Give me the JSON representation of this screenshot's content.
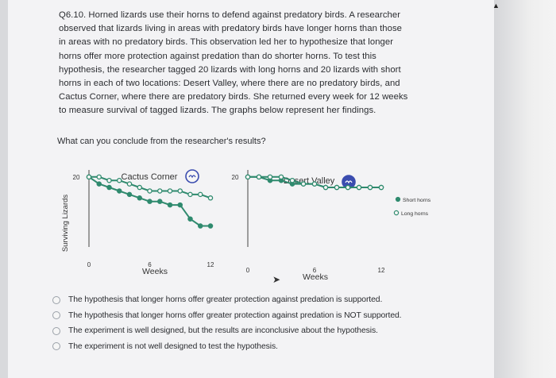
{
  "question": {
    "number": "Q6.10.",
    "lines": [
      "Q6.10. Horned lizards use their horns to defend against predatory birds. A researcher",
      "observed that lizards living in areas with predatory birds have longer horns than those",
      "in areas with no predatory birds. This observation led her to hypothesize that longer",
      "horns offer more protection against predation than do shorter horns. To test this",
      "hypothesis, the researcher tagged 20 lizards with long horns and 20 lizards with short",
      "horns in each of two locations: Desert Valley, where there are no predatory birds, and",
      "Cactus Corner, where there are predatory birds. She returned every week for 12 weeks",
      "to measure survival of tagged lizards. The graphs below represent her findings."
    ],
    "prompt": "What can you conclude from the researcher's results?"
  },
  "chart_data": [
    {
      "type": "line",
      "title": "Cactus Corner",
      "xlabel": "Weeks",
      "ylabel": "Surviving Lizards",
      "xticks": [
        "0",
        "6",
        "12"
      ],
      "yticks": [
        "20"
      ],
      "xlim": [
        0,
        12
      ],
      "ylim": [
        0,
        22
      ],
      "series": [
        {
          "name": "Long horns",
          "marker": "open",
          "x": [
            0,
            1,
            2,
            3,
            4,
            5,
            6,
            7,
            8,
            9,
            10,
            11,
            12
          ],
          "y": [
            20,
            20,
            19,
            19,
            18,
            17,
            16,
            16,
            16,
            16,
            15,
            15,
            14
          ]
        },
        {
          "name": "Short horns",
          "marker": "filled",
          "x": [
            0,
            1,
            2,
            3,
            4,
            5,
            6,
            7,
            8,
            9,
            10,
            11,
            12
          ],
          "y": [
            20,
            18,
            17,
            16,
            15,
            14,
            13,
            13,
            12,
            12,
            8,
            6,
            6
          ]
        }
      ]
    },
    {
      "type": "line",
      "title": "Desert Valley",
      "xlabel": "Weeks",
      "ylabel": "",
      "xticks": [
        "0",
        "6",
        "12"
      ],
      "yticks": [
        "20"
      ],
      "xlim": [
        0,
        12
      ],
      "ylim": [
        0,
        22
      ],
      "series": [
        {
          "name": "Long horns",
          "marker": "open",
          "x": [
            0,
            1,
            2,
            3,
            4,
            5,
            6,
            7,
            8,
            9,
            10,
            11,
            12
          ],
          "y": [
            20,
            20,
            20,
            20,
            19,
            18,
            18,
            17,
            17,
            17,
            17,
            17,
            17
          ]
        },
        {
          "name": "Short horns",
          "marker": "filled",
          "x": [
            0,
            1,
            2,
            3,
            4,
            5,
            6,
            7,
            8,
            9,
            10,
            11,
            12
          ],
          "y": [
            20,
            20,
            19,
            19,
            18,
            18,
            18,
            17,
            17,
            17,
            17,
            17,
            17
          ]
        }
      ]
    }
  ],
  "legend": {
    "short": "Short horns",
    "long": "Long horns"
  },
  "colors": {
    "short": "#2f8a6e",
    "long": "#2f8a6e",
    "axis": "#444",
    "badge": "#3a4caf"
  },
  "icons": {
    "cactus_badge": "bird-icon",
    "desert_badge": "no-bird-icon"
  },
  "options": [
    "The hypothesis that longer horns offer greater protection against predation is supported.",
    "The hypothesis that longer horns offer greater protection against predation is NOT supported.",
    "The experiment is well designed, but the results are inconclusive about the hypothesis.",
    "The experiment is not well designed to test the hypothesis."
  ]
}
